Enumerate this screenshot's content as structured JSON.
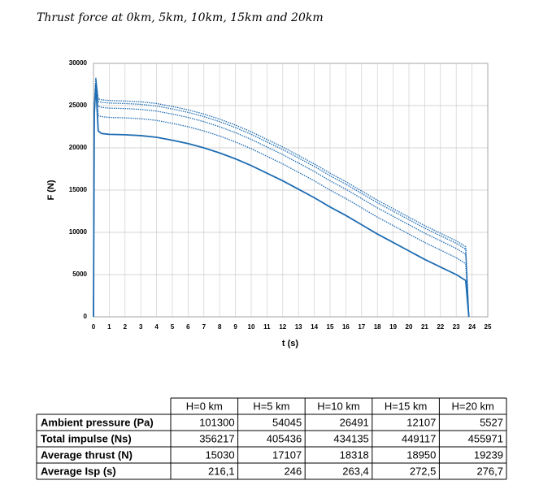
{
  "title": "Thrust force at 0km, 5km, 10km, 15km and 20km",
  "chart_data": {
    "type": "line",
    "xlabel": "t (s)",
    "ylabel": "F (N)",
    "x": [
      0,
      0.05,
      0.15,
      0.3,
      0.5,
      1,
      2,
      3,
      4,
      5,
      6,
      7,
      8,
      9,
      10,
      11,
      12,
      13,
      14,
      15,
      16,
      17,
      18,
      19,
      20,
      21,
      22,
      23,
      23.6,
      23.8
    ],
    "series": [
      {
        "color": "#1f6db3",
        "dash": false,
        "values": [
          0,
          24000,
          27500,
          22000,
          21700,
          21600,
          21550,
          21450,
          21250,
          20900,
          20500,
          20000,
          19400,
          18700,
          17900,
          17000,
          16100,
          15100,
          14100,
          13000,
          12000,
          10900,
          9800,
          8800,
          7800,
          6800,
          5900,
          5000,
          4300,
          0
        ]
      },
      {
        "color": "#1f6db3",
        "dash": true,
        "values": [
          0,
          24000,
          27500,
          23800,
          23700,
          23600,
          23550,
          23450,
          23250,
          22900,
          22500,
          22000,
          21400,
          20700,
          19900,
          19000,
          18100,
          17100,
          16100,
          15000,
          14000,
          12900,
          11800,
          10800,
          9800,
          8800,
          7900,
          7000,
          6300,
          0
        ]
      },
      {
        "color": "#1f6db3",
        "dash": true,
        "values": [
          0,
          24500,
          28000,
          24900,
          24800,
          24700,
          24650,
          24550,
          24350,
          24000,
          23600,
          23100,
          22500,
          21800,
          21000,
          20100,
          19200,
          18200,
          17200,
          16100,
          15100,
          14000,
          12900,
          11900,
          10900,
          9900,
          9000,
          8100,
          7400,
          0
        ]
      },
      {
        "color": "#1f6db3",
        "dash": true,
        "values": [
          0,
          25000,
          28200,
          25500,
          25400,
          25300,
          25250,
          25150,
          24950,
          24600,
          24200,
          23700,
          23100,
          22400,
          21600,
          20700,
          19800,
          18800,
          17800,
          16700,
          15700,
          14600,
          13500,
          12500,
          11500,
          10500,
          9600,
          8700,
          8000,
          0
        ]
      },
      {
        "color": "#1f6db3",
        "dash": true,
        "values": [
          0,
          25200,
          28300,
          25800,
          25700,
          25600,
          25550,
          25450,
          25250,
          24900,
          24500,
          24000,
          23400,
          22700,
          21900,
          21000,
          20100,
          19100,
          18100,
          17000,
          16000,
          14900,
          13800,
          12800,
          11800,
          10800,
          9900,
          9000,
          8300,
          0
        ]
      }
    ],
    "xlim": [
      0,
      25
    ],
    "xticks": [
      0,
      1,
      2,
      3,
      4,
      5,
      6,
      7,
      8,
      9,
      10,
      11,
      12,
      13,
      14,
      15,
      16,
      17,
      18,
      19,
      20,
      21,
      22,
      23,
      24,
      25
    ],
    "ylim": [
      0,
      30000
    ],
    "yticks": [
      0,
      5000,
      10000,
      15000,
      20000,
      25000,
      30000
    ],
    "grid": true
  },
  "table": {
    "columns": [
      "H=0 km",
      "H=5 km",
      "H=10 km",
      "H=15 km",
      "H=20 km"
    ],
    "rows": [
      {
        "label": "Ambient pressure (Pa)",
        "cells": [
          101300,
          54045,
          26491,
          12107,
          5527
        ]
      },
      {
        "label": "Total impulse (Ns)",
        "cells": [
          356217,
          405436,
          434135,
          449117,
          455971
        ]
      },
      {
        "label": "Average thrust (N)",
        "cells": [
          15030,
          17107,
          18318,
          18950,
          19239
        ]
      },
      {
        "label": "Average Isp (s)",
        "cells": [
          "216,1",
          "246",
          "263,4",
          "272,5",
          "276,7"
        ]
      }
    ]
  }
}
